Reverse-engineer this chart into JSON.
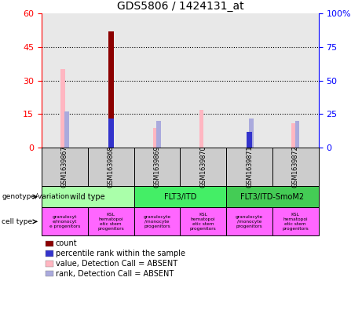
{
  "title": "GDS5806 / 1424131_at",
  "samples": [
    "GSM1639867",
    "GSM1639868",
    "GSM1639869",
    "GSM1639870",
    "GSM1639871",
    "GSM1639872"
  ],
  "count_values": [
    0,
    52,
    0,
    0,
    0,
    0
  ],
  "count_color": "#8B0000",
  "percentile_values": [
    0,
    22,
    0,
    0,
    12,
    0
  ],
  "percentile_color": "#3333CC",
  "value_absent": [
    35,
    0,
    9,
    17,
    0,
    11
  ],
  "value_absent_color": "#FFB6C1",
  "rank_absent": [
    27,
    0,
    20,
    0,
    22,
    20
  ],
  "rank_absent_color": "#AAAADD",
  "ylim_left": [
    0,
    60
  ],
  "ylim_right": [
    0,
    100
  ],
  "yticks_left": [
    0,
    15,
    30,
    45,
    60
  ],
  "ytick_labels_left": [
    "0",
    "15",
    "30",
    "45",
    "60"
  ],
  "ytick_labels_right": [
    "0",
    "25",
    "50",
    "75",
    "100%"
  ],
  "genotype_groups": [
    {
      "label": "wild type",
      "cols": [
        0,
        1
      ],
      "color": "#AAFFAA"
    },
    {
      "label": "FLT3/ITD",
      "cols": [
        2,
        3
      ],
      "color": "#44EE66"
    },
    {
      "label": "FLT3/ITD-SmoM2",
      "cols": [
        4,
        5
      ],
      "color": "#44CC55"
    }
  ],
  "cell_type_labels": [
    "granulocyt\ne/monocyt\ne progenitors",
    "KSL\nhematopoi\netic stem\nprogenitors",
    "granulocyte\n/monocyte\nprogenitors",
    "KSL\nhematopoi\netic stem\nprogenitors",
    "granulocyte\n/monocyte\nprogenitors",
    "KSL\nhematopoi\netic stem\nprogenitors"
  ],
  "cell_type_color": "#FF66FF",
  "legend_items": [
    {
      "label": "count",
      "color": "#8B0000"
    },
    {
      "label": "percentile rank within the sample",
      "color": "#3333CC"
    },
    {
      "label": "value, Detection Call = ABSENT",
      "color": "#FFB6C1"
    },
    {
      "label": "rank, Detection Call = ABSENT",
      "color": "#AAAADD"
    }
  ],
  "bar_width": 0.08,
  "plot_bg_color": "#E8E8E8"
}
